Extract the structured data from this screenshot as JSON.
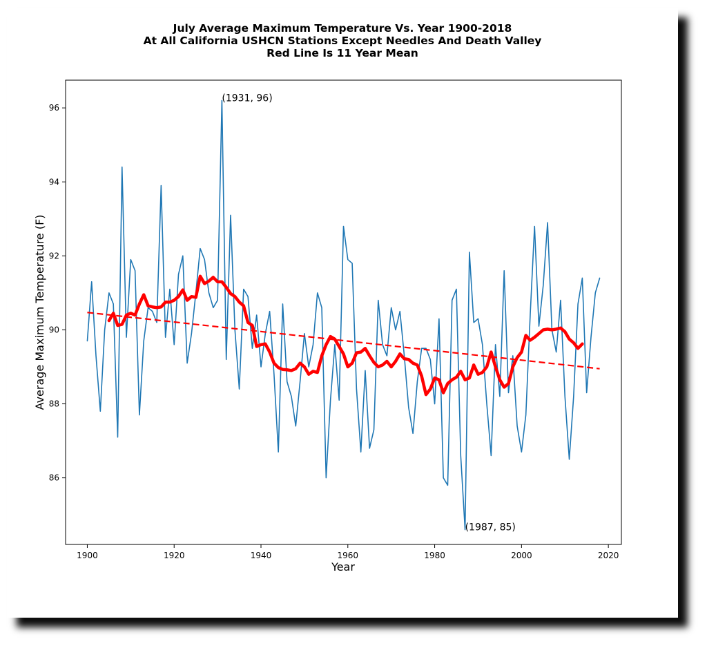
{
  "chart_data": {
    "type": "line",
    "title": [
      "July Average Maximum Temperature Vs. Year 1900-2018",
      "At All California USHCN Stations Except Needles And Death Valley",
      "Red Line Is 11 Year Mean"
    ],
    "xlabel": "Year",
    "ylabel": "Average Maximum Temperature (F)",
    "xlim": [
      1895,
      2023
    ],
    "ylim": [
      84.2,
      96.75
    ],
    "xticks": [
      1900,
      1920,
      1940,
      1960,
      1980,
      2000,
      2020
    ],
    "yticks": [
      86,
      88,
      90,
      92,
      94,
      96
    ],
    "grid": false,
    "colors": {
      "annual": "#1f77b4",
      "mean": "#ff0000",
      "trend": "#ff0000"
    },
    "series": [
      {
        "style": "annual",
        "x_start": 1900,
        "values": [
          89.7,
          91.3,
          89.3,
          87.8,
          90.0,
          91.0,
          90.7,
          87.1,
          94.4,
          89.8,
          91.9,
          91.6,
          87.7,
          89.7,
          90.6,
          90.5,
          90.2,
          93.9,
          89.8,
          91.1,
          89.6,
          91.5,
          92.0,
          89.1,
          89.9,
          91.0,
          92.2,
          91.9,
          91.0,
          90.6,
          90.8,
          96.2,
          89.2,
          93.1,
          90.0,
          88.4,
          91.1,
          90.9,
          89.5,
          90.4,
          89.0,
          89.9,
          90.5,
          88.8,
          86.7,
          90.7,
          88.6,
          88.2,
          87.4,
          88.6,
          89.9,
          89.0,
          89.6,
          91.0,
          90.6,
          86.0,
          88.1,
          89.6,
          88.1,
          92.8,
          91.9,
          91.8,
          88.4,
          86.7,
          88.9,
          86.8,
          87.3,
          90.8,
          89.6,
          89.3,
          90.6,
          90.0,
          90.5,
          89.3,
          87.9,
          87.2,
          88.6,
          89.5,
          89.5,
          89.2,
          88.0,
          90.3,
          86.0,
          85.8,
          90.8,
          91.1,
          86.6,
          84.6,
          92.1,
          90.2,
          90.3,
          89.6,
          88.0,
          86.6,
          89.6,
          88.2,
          91.6,
          88.3,
          89.3,
          87.4,
          86.7,
          87.7,
          90.4,
          92.8,
          90.1,
          91.2,
          92.9,
          90.0,
          89.4,
          90.8,
          88.2,
          86.5,
          88.2,
          90.7,
          91.4,
          88.3,
          89.8,
          91.0,
          91.4
        ]
      },
      {
        "style": "mean",
        "x_start": 1905,
        "values": [
          90.25,
          90.45,
          90.12,
          90.15,
          90.4,
          90.45,
          90.4,
          90.7,
          90.95,
          90.65,
          90.62,
          90.6,
          90.62,
          90.75,
          90.75,
          90.8,
          90.9,
          91.08,
          90.8,
          90.9,
          90.88,
          91.45,
          91.25,
          91.32,
          91.42,
          91.3,
          91.3,
          91.15,
          90.98,
          90.9,
          90.75,
          90.65,
          90.2,
          90.12,
          89.55,
          89.6,
          89.62,
          89.4,
          89.1,
          88.98,
          88.93,
          88.92,
          88.9,
          88.95,
          89.1,
          89.0,
          88.8,
          88.88,
          88.85,
          89.3,
          89.6,
          89.82,
          89.75,
          89.55,
          89.35,
          89.0,
          89.1,
          89.38,
          89.4,
          89.5,
          89.3,
          89.12,
          89.0,
          89.05,
          89.15,
          89.0,
          89.15,
          89.35,
          89.22,
          89.2,
          89.1,
          89.05,
          88.75,
          88.25,
          88.4,
          88.7,
          88.65,
          88.3,
          88.55,
          88.65,
          88.72,
          88.88,
          88.65,
          88.7,
          89.05,
          88.8,
          88.85,
          89.0,
          89.4,
          89.0,
          88.65,
          88.45,
          88.55,
          89.0,
          89.25,
          89.4,
          89.85,
          89.72,
          89.8,
          89.9,
          90.0,
          90.02,
          90.0,
          90.02,
          90.05,
          89.95,
          89.75,
          89.65,
          89.5,
          89.62
        ]
      },
      {
        "style": "trend",
        "x": [
          1900,
          2018
        ],
        "values": [
          90.47,
          88.95
        ]
      }
    ],
    "annotations": [
      {
        "text": "(1931, 96)",
        "x": 1931,
        "y": 96.2
      },
      {
        "text": "(1987, 85)",
        "x": 1987,
        "y": 84.6
      }
    ]
  }
}
